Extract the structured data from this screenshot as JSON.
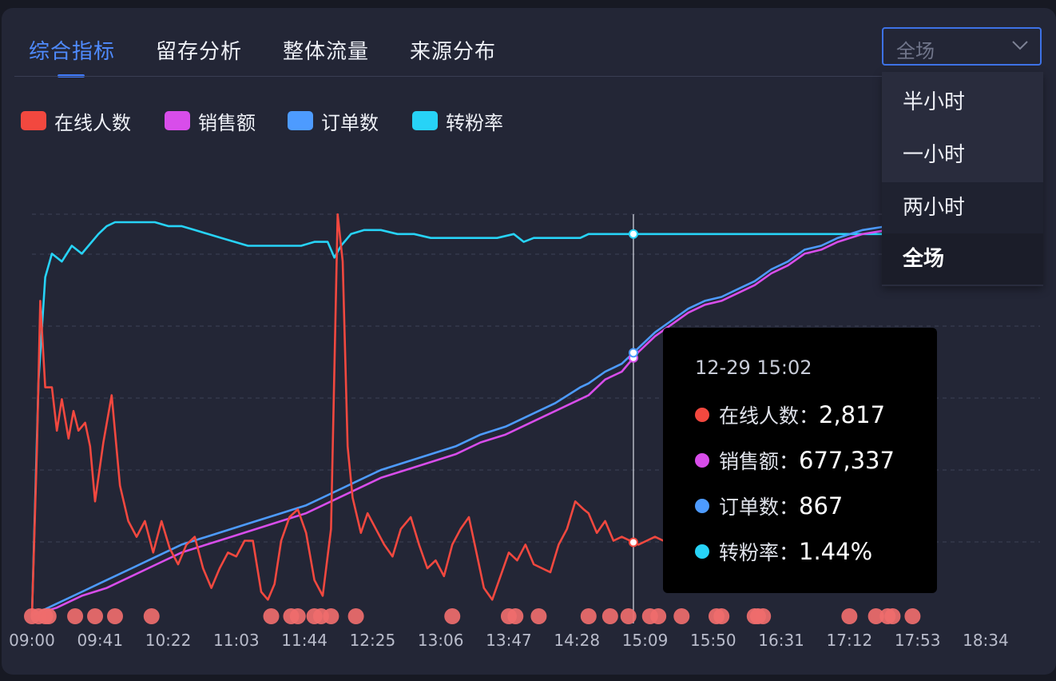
{
  "tabs": [
    {
      "label": "综合指标",
      "active": true
    },
    {
      "label": "留存分析"
    },
    {
      "label": "整体流量"
    },
    {
      "label": "来源分布"
    }
  ],
  "range_select": {
    "value": "全场",
    "options": [
      "半小时",
      "一小时",
      "两小时",
      "全场"
    ],
    "selected_option": "全场",
    "hovered_option": "两小时"
  },
  "legend": [
    {
      "label": "在线人数",
      "color": "#f2483f"
    },
    {
      "label": "销售额",
      "color": "#d84dea"
    },
    {
      "label": "订单数",
      "color": "#4d9bff"
    },
    {
      "label": "转粉率",
      "color": "#27d3f7"
    }
  ],
  "tooltip": {
    "time": "12-29 15:02",
    "rows": [
      {
        "label": "在线人数：",
        "value": "2,817",
        "color": "#f2483f"
      },
      {
        "label": "销售额：",
        "value": "677,337",
        "color": "#d84dea"
      },
      {
        "label": "订单数：",
        "value": "867",
        "color": "#4d9bff"
      },
      {
        "label": "转粉率：",
        "value": "1.44%",
        "color": "#27d3f7"
      }
    ]
  },
  "chart_data": {
    "type": "line",
    "x_tick_labels": [
      "09:00",
      "09:41",
      "10:22",
      "11:03",
      "11:44",
      "12:25",
      "13:06",
      "13:47",
      "14:28",
      "15:09",
      "15:50",
      "16:31",
      "17:12",
      "17:53",
      "18:34"
    ],
    "x_start": "09:00",
    "x_step_minutes": 41,
    "x_end": "18:57",
    "grid": "horizontal dashed",
    "legend_position": "top-left",
    "hover_time": "15:02",
    "series_scale_note": "each series plotted on its own normalized scale (0-1)",
    "series": [
      {
        "name": "在线人数",
        "color": "#f2483f",
        "points": [
          [
            0,
            0.0
          ],
          [
            3,
            0.42
          ],
          [
            5,
            0.8
          ],
          [
            8,
            0.58
          ],
          [
            12,
            0.58
          ],
          [
            15,
            0.47
          ],
          [
            18,
            0.55
          ],
          [
            22,
            0.45
          ],
          [
            25,
            0.52
          ],
          [
            28,
            0.47
          ],
          [
            32,
            0.49
          ],
          [
            35,
            0.43
          ],
          [
            38,
            0.29
          ],
          [
            43,
            0.44
          ],
          [
            48,
            0.56
          ],
          [
            53,
            0.33
          ],
          [
            58,
            0.24
          ],
          [
            63,
            0.2
          ],
          [
            68,
            0.24
          ],
          [
            73,
            0.16
          ],
          [
            78,
            0.24
          ],
          [
            83,
            0.17
          ],
          [
            88,
            0.13
          ],
          [
            93,
            0.18
          ],
          [
            98,
            0.2
          ],
          [
            103,
            0.12
          ],
          [
            108,
            0.07
          ],
          [
            113,
            0.12
          ],
          [
            118,
            0.16
          ],
          [
            123,
            0.15
          ],
          [
            128,
            0.19
          ],
          [
            133,
            0.19
          ],
          [
            138,
            0.06
          ],
          [
            142,
            0.04
          ],
          [
            146,
            0.08
          ],
          [
            150,
            0.19
          ],
          [
            155,
            0.25
          ],
          [
            160,
            0.27
          ],
          [
            165,
            0.21
          ],
          [
            170,
            0.09
          ],
          [
            175,
            0.05
          ],
          [
            180,
            0.22
          ],
          [
            184,
            1.02
          ],
          [
            187,
            0.9
          ],
          [
            190,
            0.43
          ],
          [
            193,
            0.3
          ],
          [
            198,
            0.21
          ],
          [
            202,
            0.26
          ],
          [
            207,
            0.22
          ],
          [
            212,
            0.18
          ],
          [
            217,
            0.15
          ],
          [
            222,
            0.22
          ],
          [
            228,
            0.25
          ],
          [
            233,
            0.18
          ],
          [
            238,
            0.12
          ],
          [
            243,
            0.14
          ],
          [
            248,
            0.1
          ],
          [
            253,
            0.18
          ],
          [
            258,
            0.22
          ],
          [
            263,
            0.25
          ],
          [
            267,
            0.17
          ],
          [
            272,
            0.07
          ],
          [
            277,
            0.04
          ],
          [
            282,
            0.1
          ],
          [
            287,
            0.16
          ],
          [
            292,
            0.14
          ],
          [
            297,
            0.18
          ],
          [
            302,
            0.13
          ],
          [
            307,
            0.12
          ],
          [
            312,
            0.11
          ],
          [
            317,
            0.18
          ],
          [
            322,
            0.22
          ],
          [
            327,
            0.29
          ],
          [
            332,
            0.27
          ],
          [
            335,
            0.26
          ],
          [
            340,
            0.21
          ],
          [
            345,
            0.24
          ],
          [
            350,
            0.19
          ],
          [
            355,
            0.2
          ],
          [
            360,
            0.19
          ],
          [
            365,
            0.18
          ],
          [
            370,
            0.19
          ],
          [
            375,
            0.2
          ],
          [
            380,
            0.19
          ],
          [
            385,
            0.2
          ],
          [
            390,
            0.21
          ],
          [
            395,
            0.2
          ],
          [
            400,
            0.19
          ],
          [
            405,
            0.21
          ],
          [
            410,
            0.2
          ],
          [
            415,
            0.21
          ],
          [
            420,
            0.2
          ],
          [
            425,
            0.21
          ],
          [
            430,
            0.2
          ],
          [
            435,
            0.21
          ],
          [
            440,
            0.2
          ],
          [
            445,
            0.21
          ],
          [
            450,
            0.2
          ],
          [
            455,
            0.21
          ],
          [
            460,
            0.2
          ],
          [
            465,
            0.21
          ],
          [
            470,
            0.2
          ],
          [
            475,
            0.21
          ],
          [
            480,
            0.18
          ],
          [
            483,
            0.14
          ],
          [
            487,
            0.17
          ],
          [
            492,
            0.2
          ],
          [
            497,
            0.21
          ],
          [
            503,
            0.26
          ],
          [
            507,
            0.21
          ],
          [
            512,
            0.2
          ],
          [
            517,
            0.15
          ],
          [
            522,
            0.17
          ],
          [
            527,
            0.12
          ],
          [
            530,
            0.15
          ]
        ]
      },
      {
        "name": "销售额",
        "color": "#d84dea",
        "points": [
          [
            0,
            0.0
          ],
          [
            15,
            0.02
          ],
          [
            30,
            0.05
          ],
          [
            45,
            0.07
          ],
          [
            60,
            0.1
          ],
          [
            75,
            0.13
          ],
          [
            90,
            0.16
          ],
          [
            105,
            0.18
          ],
          [
            120,
            0.2
          ],
          [
            135,
            0.22
          ],
          [
            150,
            0.24
          ],
          [
            165,
            0.26
          ],
          [
            180,
            0.29
          ],
          [
            195,
            0.32
          ],
          [
            210,
            0.35
          ],
          [
            225,
            0.37
          ],
          [
            240,
            0.39
          ],
          [
            255,
            0.41
          ],
          [
            270,
            0.44
          ],
          [
            285,
            0.46
          ],
          [
            300,
            0.49
          ],
          [
            315,
            0.52
          ],
          [
            330,
            0.55
          ],
          [
            335,
            0.56
          ],
          [
            345,
            0.6
          ],
          [
            355,
            0.62
          ],
          [
            365,
            0.67
          ],
          [
            375,
            0.71
          ],
          [
            385,
            0.74
          ],
          [
            395,
            0.77
          ],
          [
            405,
            0.79
          ],
          [
            415,
            0.8
          ],
          [
            425,
            0.82
          ],
          [
            435,
            0.84
          ],
          [
            445,
            0.87
          ],
          [
            455,
            0.89
          ],
          [
            465,
            0.92
          ],
          [
            475,
            0.93
          ],
          [
            485,
            0.95
          ],
          [
            500,
            0.97
          ],
          [
            515,
            0.98
          ],
          [
            530,
            0.98
          ]
        ]
      },
      {
        "name": "订单数",
        "color": "#4d9bff",
        "points": [
          [
            0,
            0.0
          ],
          [
            15,
            0.03
          ],
          [
            30,
            0.06
          ],
          [
            45,
            0.09
          ],
          [
            60,
            0.12
          ],
          [
            75,
            0.15
          ],
          [
            90,
            0.18
          ],
          [
            105,
            0.2
          ],
          [
            120,
            0.22
          ],
          [
            135,
            0.24
          ],
          [
            150,
            0.26
          ],
          [
            165,
            0.28
          ],
          [
            180,
            0.31
          ],
          [
            195,
            0.34
          ],
          [
            210,
            0.37
          ],
          [
            225,
            0.39
          ],
          [
            240,
            0.41
          ],
          [
            255,
            0.43
          ],
          [
            270,
            0.46
          ],
          [
            285,
            0.48
          ],
          [
            300,
            0.51
          ],
          [
            315,
            0.54
          ],
          [
            330,
            0.58
          ],
          [
            335,
            0.59
          ],
          [
            345,
            0.62
          ],
          [
            355,
            0.64
          ],
          [
            365,
            0.68
          ],
          [
            375,
            0.72
          ],
          [
            385,
            0.75
          ],
          [
            395,
            0.78
          ],
          [
            405,
            0.8
          ],
          [
            415,
            0.81
          ],
          [
            425,
            0.83
          ],
          [
            435,
            0.85
          ],
          [
            445,
            0.88
          ],
          [
            455,
            0.9
          ],
          [
            465,
            0.93
          ],
          [
            475,
            0.94
          ],
          [
            485,
            0.96
          ],
          [
            500,
            0.98
          ],
          [
            515,
            0.99
          ],
          [
            530,
            0.99
          ]
        ]
      },
      {
        "name": "转粉率",
        "color": "#27d3f7",
        "points": [
          [
            0,
            0.0
          ],
          [
            4,
            0.6
          ],
          [
            8,
            0.86
          ],
          [
            12,
            0.92
          ],
          [
            18,
            0.9
          ],
          [
            24,
            0.94
          ],
          [
            30,
            0.92
          ],
          [
            36,
            0.95
          ],
          [
            40,
            0.97
          ],
          [
            45,
            0.99
          ],
          [
            50,
            1.0
          ],
          [
            58,
            1.0
          ],
          [
            66,
            1.0
          ],
          [
            74,
            1.0
          ],
          [
            82,
            0.99
          ],
          [
            90,
            0.99
          ],
          [
            98,
            0.98
          ],
          [
            106,
            0.97
          ],
          [
            114,
            0.96
          ],
          [
            122,
            0.95
          ],
          [
            130,
            0.94
          ],
          [
            138,
            0.94
          ],
          [
            146,
            0.94
          ],
          [
            154,
            0.94
          ],
          [
            162,
            0.94
          ],
          [
            170,
            0.95
          ],
          [
            178,
            0.95
          ],
          [
            182,
            0.91
          ],
          [
            186,
            0.94
          ],
          [
            192,
            0.97
          ],
          [
            200,
            0.98
          ],
          [
            210,
            0.98
          ],
          [
            220,
            0.97
          ],
          [
            230,
            0.97
          ],
          [
            240,
            0.96
          ],
          [
            250,
            0.96
          ],
          [
            260,
            0.96
          ],
          [
            270,
            0.96
          ],
          [
            280,
            0.96
          ],
          [
            290,
            0.97
          ],
          [
            296,
            0.95
          ],
          [
            302,
            0.96
          ],
          [
            310,
            0.96
          ],
          [
            320,
            0.96
          ],
          [
            330,
            0.96
          ],
          [
            335,
            0.97
          ],
          [
            345,
            0.97
          ],
          [
            355,
            0.97
          ],
          [
            365,
            0.97
          ],
          [
            375,
            0.97
          ],
          [
            385,
            0.97
          ],
          [
            395,
            0.97
          ],
          [
            405,
            0.97
          ],
          [
            415,
            0.97
          ],
          [
            425,
            0.97
          ],
          [
            435,
            0.97
          ],
          [
            445,
            0.97
          ],
          [
            455,
            0.97
          ],
          [
            465,
            0.97
          ],
          [
            475,
            0.97
          ],
          [
            485,
            0.97
          ],
          [
            500,
            0.97
          ],
          [
            515,
            0.97
          ],
          [
            530,
            0.97
          ]
        ]
      }
    ],
    "event_marker_minutes": [
      0,
      4,
      8,
      10,
      26,
      38,
      50,
      72,
      144,
      156,
      160,
      170,
      174,
      180,
      195,
      253,
      287,
      291,
      305,
      335,
      348,
      359,
      372,
      377,
      391,
      412,
      415,
      435,
      437,
      440,
      492,
      508,
      515,
      518,
      530
    ]
  }
}
